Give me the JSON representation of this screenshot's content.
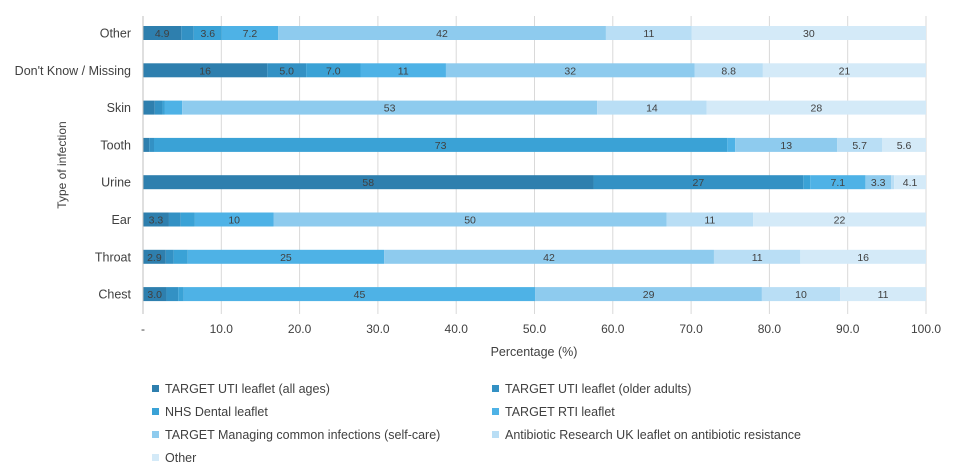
{
  "chart_data": {
    "type": "bar",
    "orientation": "horizontal",
    "stacked": true,
    "xlabel": "Percentage  (%)",
    "ylabel": "Type of infection",
    "xlim": [
      0,
      100
    ],
    "x_ticks": [
      "-",
      "10.0",
      "20.0",
      "30.0",
      "40.0",
      "50.0",
      "60.0",
      "70.0",
      "80.0",
      "90.0",
      "100.0"
    ],
    "categories": [
      "Other",
      "Don't Know / Missing",
      "Skin",
      "Tooth",
      "Urine",
      "Ear",
      "Throat",
      "Chest"
    ],
    "legend_position": "bottom",
    "series": [
      {
        "name": "TARGET UTI leaflet (all ages)",
        "color": "#2e7fae",
        "values": [
          4.9,
          16,
          1.5,
          0.8,
          58,
          3.3,
          2.9,
          3.0
        ],
        "labels": [
          "4.9",
          "16",
          "",
          "",
          "58",
          "3.3",
          "2.9",
          "3.0"
        ]
      },
      {
        "name": "TARGET UTI leaflet (older adults)",
        "color": "#3391c4",
        "values": [
          1.6,
          5.0,
          1.0,
          0.6,
          27,
          1.5,
          1.0,
          1.5
        ],
        "labels": [
          "",
          "5.0",
          "",
          "",
          "27",
          "",
          "",
          ""
        ]
      },
      {
        "name": "NHS Dental leaflet",
        "color": "#3aa2d6",
        "values": [
          3.6,
          7.0,
          0.3,
          73,
          0.9,
          1.8,
          1.8,
          0.7
        ],
        "labels": [
          "3.6",
          "7.0",
          "",
          "73",
          "",
          "",
          "",
          ""
        ]
      },
      {
        "name": "TARGET RTI leaflet",
        "color": "#4eb2e6",
        "values": [
          7.2,
          11,
          2.2,
          1.0,
          7.1,
          10,
          25,
          45
        ],
        "labels": [
          "7.2",
          "11",
          "",
          "",
          "7.1",
          "10",
          "25",
          "45"
        ]
      },
      {
        "name": "TARGET Managing common infections (self-care)",
        "color": "#8ecbee",
        "values": [
          42,
          32,
          53,
          13,
          3.3,
          50,
          42,
          29
        ],
        "labels": [
          "42",
          "32",
          "53",
          "13",
          "3.3",
          "50",
          "42",
          "29"
        ]
      },
      {
        "name": "Antibiotic Research UK leaflet on antibiotic resistance",
        "color": "#b9def5",
        "values": [
          11,
          8.8,
          14,
          5.7,
          0.4,
          11,
          11,
          10
        ],
        "labels": [
          "11",
          "8.8",
          "14",
          "5.7",
          "",
          "11",
          "11",
          "10"
        ]
      },
      {
        "name": "Other",
        "color": "#d4eaf8",
        "values": [
          30,
          21,
          28,
          5.6,
          4.1,
          22,
          16,
          11
        ],
        "labels": [
          "30",
          "21",
          "28",
          "5.6",
          "4.1",
          "22",
          "16",
          "11"
        ]
      }
    ]
  }
}
